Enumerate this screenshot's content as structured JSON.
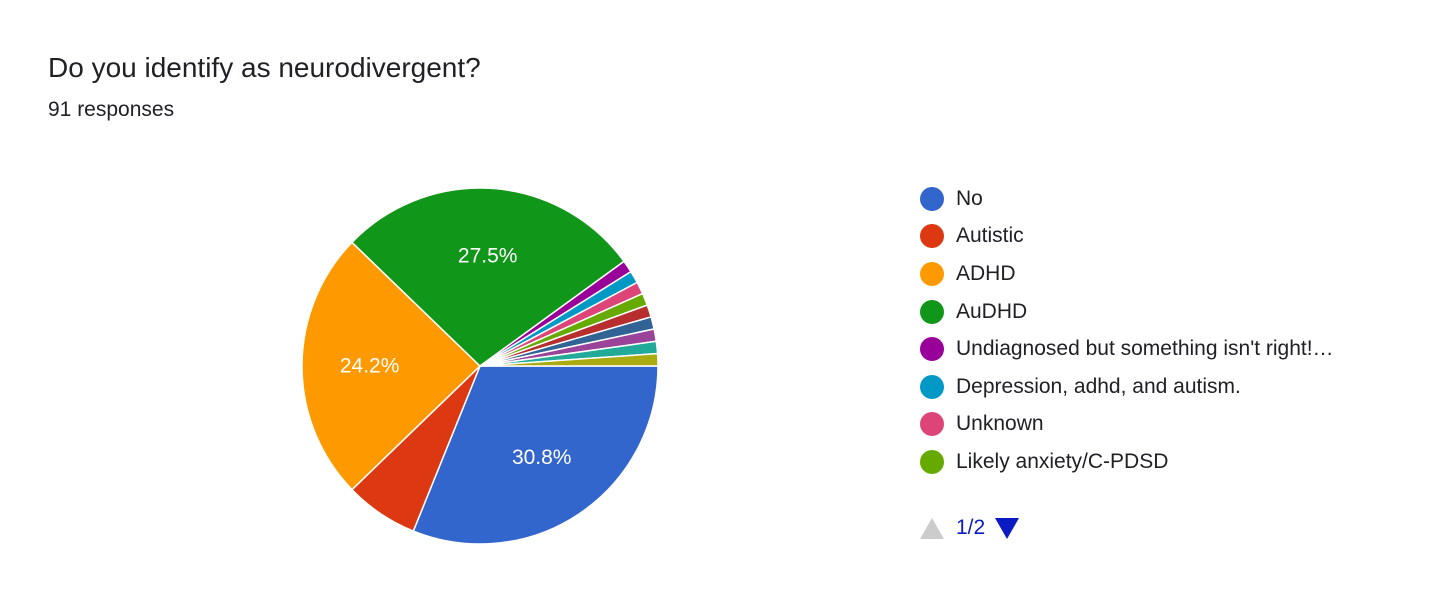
{
  "chart_data": {
    "type": "pie",
    "title": "Do you identify as neurodivergent?",
    "subtitle": "91 responses",
    "categories": [
      "No",
      "Autistic",
      "ADHD",
      "AuDHD",
      "Undiagnosed but something isn't right!…",
      "Depression, adhd, and autism.",
      "Unknown",
      "Likely anxiety/C-PDSD",
      "",
      "",
      "",
      "",
      ""
    ],
    "values": [
      30.8,
      6.6,
      24.2,
      27.5,
      1.1,
      1.1,
      1.1,
      1.1,
      1.1,
      1.1,
      1.1,
      1.1,
      1.1
    ],
    "slice_labels": [
      "30.8%",
      "",
      "24.2%",
      "27.5%",
      "",
      "",
      "",
      "",
      "",
      "",
      "",
      "",
      ""
    ],
    "colors": [
      "#3366cc",
      "#dc3912",
      "#ff9900",
      "#109618",
      "#990099",
      "#0099c6",
      "#dd4477",
      "#66aa00",
      "#b82e2e",
      "#316395",
      "#994499",
      "#22aa99",
      "#aaaa11",
      "#6633cc"
    ],
    "legend_position": "right",
    "legend_visible_count": 8
  },
  "pager": {
    "label": "1/2"
  },
  "icons": {
    "prev": "triangle-up-icon",
    "next": "triangle-down-icon"
  }
}
